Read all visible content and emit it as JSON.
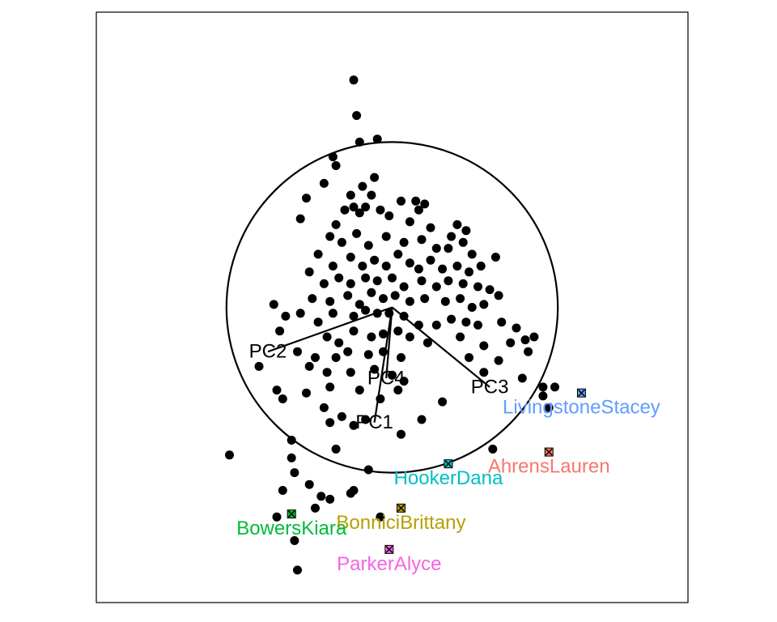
{
  "chart_data": {
    "type": "scatter",
    "title": "",
    "xlabel": "",
    "ylabel": "",
    "xlim": [
      -1.0,
      1.0
    ],
    "ylim": [
      -1.0,
      1.0
    ],
    "grid": false,
    "legend": "none",
    "unit_circle": {
      "center": [
        0,
        0
      ],
      "radius": 0.56
    },
    "axes": [
      {
        "label": "PC1",
        "end": [
          -0.06,
          -0.39
        ]
      },
      {
        "label": "PC2",
        "end": [
          -0.42,
          -0.15
        ]
      },
      {
        "label": "PC3",
        "end": [
          0.33,
          -0.27
        ]
      },
      {
        "label": "PC4",
        "end": [
          -0.02,
          -0.24
        ]
      }
    ],
    "highlighted": [
      {
        "name": "LivingstoneStacey",
        "x": 0.64,
        "y": -0.29,
        "color": "#619cff"
      },
      {
        "name": "AhrensLauren",
        "x": 0.53,
        "y": -0.49,
        "color": "#f8766d"
      },
      {
        "name": "HookerDana",
        "x": 0.19,
        "y": -0.53,
        "color": "#00bfc4"
      },
      {
        "name": "BonniciBrittany",
        "x": 0.03,
        "y": -0.68,
        "color": "#b79f00"
      },
      {
        "name": "BowersKiara",
        "x": -0.34,
        "y": -0.7,
        "color": "#00ba38"
      },
      {
        "name": "ParkerAlyce",
        "x": -0.01,
        "y": -0.82,
        "color": "#f564e3"
      }
    ],
    "points": [
      [
        -0.13,
        0.77
      ],
      [
        -0.12,
        0.65
      ],
      [
        -0.11,
        0.56
      ],
      [
        -0.05,
        0.57
      ],
      [
        -0.2,
        0.51
      ],
      [
        -0.19,
        0.48
      ],
      [
        -0.23,
        0.42
      ],
      [
        -0.06,
        0.44
      ],
      [
        -0.1,
        0.41
      ],
      [
        -0.07,
        0.38
      ],
      [
        -0.14,
        0.38
      ],
      [
        -0.29,
        0.37
      ],
      [
        -0.13,
        0.34
      ],
      [
        -0.09,
        0.34
      ],
      [
        0.03,
        0.36
      ],
      [
        0.08,
        0.36
      ],
      [
        0.11,
        0.35
      ],
      [
        -0.31,
        0.3
      ],
      [
        -0.16,
        0.33
      ],
      [
        -0.19,
        0.28
      ],
      [
        -0.11,
        0.32
      ],
      [
        -0.04,
        0.33
      ],
      [
        -0.01,
        0.31
      ],
      [
        0.09,
        0.33
      ],
      [
        0.06,
        0.29
      ],
      [
        0.13,
        0.27
      ],
      [
        0.22,
        0.28
      ],
      [
        0.25,
        0.26
      ],
      [
        0.2,
        0.24
      ],
      [
        -0.21,
        0.24
      ],
      [
        -0.17,
        0.22
      ],
      [
        -0.12,
        0.25
      ],
      [
        -0.08,
        0.21
      ],
      [
        -0.02,
        0.24
      ],
      [
        0.04,
        0.22
      ],
      [
        0.1,
        0.23
      ],
      [
        0.15,
        0.2
      ],
      [
        0.24,
        0.22
      ],
      [
        0.27,
        0.18
      ],
      [
        0.19,
        0.2
      ],
      [
        -0.25,
        0.18
      ],
      [
        -0.2,
        0.14
      ],
      [
        -0.14,
        0.17
      ],
      [
        -0.1,
        0.14
      ],
      [
        -0.06,
        0.16
      ],
      [
        -0.02,
        0.14
      ],
      [
        0.02,
        0.18
      ],
      [
        0.06,
        0.15
      ],
      [
        0.09,
        0.13
      ],
      [
        0.13,
        0.16
      ],
      [
        0.17,
        0.13
      ],
      [
        0.22,
        0.14
      ],
      [
        0.26,
        0.12
      ],
      [
        0.3,
        0.14
      ],
      [
        0.35,
        0.17
      ],
      [
        -0.28,
        0.12
      ],
      [
        -0.23,
        0.08
      ],
      [
        -0.18,
        0.1
      ],
      [
        -0.14,
        0.08
      ],
      [
        -0.09,
        0.1
      ],
      [
        -0.05,
        0.09
      ],
      [
        0.0,
        0.1
      ],
      [
        0.04,
        0.07
      ],
      [
        0.1,
        0.09
      ],
      [
        0.15,
        0.07
      ],
      [
        0.19,
        0.09
      ],
      [
        0.24,
        0.08
      ],
      [
        0.29,
        0.07
      ],
      [
        0.33,
        0.06
      ],
      [
        -0.27,
        0.03
      ],
      [
        -0.21,
        0.02
      ],
      [
        -0.15,
        0.04
      ],
      [
        -0.11,
        0.01
      ],
      [
        -0.07,
        0.05
      ],
      [
        -0.03,
        0.03
      ],
      [
        0.01,
        0.04
      ],
      [
        0.06,
        0.02
      ],
      [
        0.11,
        0.03
      ],
      [
        0.18,
        0.02
      ],
      [
        0.23,
        0.03
      ],
      [
        0.27,
        0.0
      ],
      [
        0.31,
        0.01
      ],
      [
        0.36,
        0.04
      ],
      [
        -0.4,
        0.01
      ],
      [
        -0.36,
        -0.03
      ],
      [
        -0.31,
        -0.02
      ],
      [
        -0.25,
        -0.05
      ],
      [
        -0.2,
        -0.02
      ],
      [
        -0.13,
        -0.03
      ],
      [
        -0.09,
        -0.01
      ],
      [
        -0.05,
        -0.02
      ],
      [
        -0.01,
        -0.02
      ],
      [
        0.04,
        -0.03
      ],
      [
        0.09,
        -0.06
      ],
      [
        0.15,
        -0.06
      ],
      [
        0.2,
        -0.04
      ],
      [
        0.25,
        -0.05
      ],
      [
        0.29,
        -0.06
      ],
      [
        0.37,
        -0.05
      ],
      [
        0.42,
        -0.07
      ],
      [
        0.45,
        -0.11
      ],
      [
        0.48,
        -0.1
      ],
      [
        -0.38,
        -0.08
      ],
      [
        -0.22,
        -0.1
      ],
      [
        -0.18,
        -0.12
      ],
      [
        -0.13,
        -0.08
      ],
      [
        -0.07,
        -0.1
      ],
      [
        -0.03,
        -0.09
      ],
      [
        0.02,
        -0.08
      ],
      [
        0.06,
        -0.1
      ],
      [
        0.12,
        -0.12
      ],
      [
        0.23,
        -0.1
      ],
      [
        0.31,
        -0.13
      ],
      [
        0.4,
        -0.12
      ],
      [
        0.46,
        -0.15
      ],
      [
        -0.32,
        -0.15
      ],
      [
        -0.26,
        -0.17
      ],
      [
        -0.19,
        -0.17
      ],
      [
        -0.15,
        -0.15
      ],
      [
        -0.08,
        -0.16
      ],
      [
        -0.03,
        -0.15
      ],
      [
        0.03,
        -0.17
      ],
      [
        0.26,
        -0.17
      ],
      [
        0.36,
        -0.18
      ],
      [
        -0.45,
        -0.2
      ],
      [
        -0.28,
        -0.2
      ],
      [
        -0.22,
        -0.22
      ],
      [
        -0.14,
        -0.22
      ],
      [
        -0.06,
        -0.21
      ],
      [
        0.0,
        -0.23
      ],
      [
        0.04,
        -0.25
      ],
      [
        0.31,
        -0.22
      ],
      [
        0.44,
        -0.24
      ],
      [
        0.51,
        -0.27
      ],
      [
        0.55,
        -0.27
      ],
      [
        -0.39,
        -0.28
      ],
      [
        -0.29,
        -0.29
      ],
      [
        -0.21,
        -0.27
      ],
      [
        -0.11,
        -0.28
      ],
      [
        -0.04,
        -0.31
      ],
      [
        0.02,
        -0.28
      ],
      [
        0.17,
        -0.32
      ],
      [
        -0.37,
        -0.31
      ],
      [
        -0.23,
        -0.34
      ],
      [
        -0.17,
        -0.37
      ],
      [
        -0.09,
        -0.38
      ],
      [
        -0.13,
        -0.4
      ],
      [
        -0.21,
        -0.39
      ],
      [
        0.1,
        -0.38
      ],
      [
        0.51,
        -0.3
      ],
      [
        0.53,
        -0.34
      ],
      [
        -0.34,
        -0.45
      ],
      [
        -0.19,
        -0.48
      ],
      [
        0.34,
        -0.48
      ],
      [
        -0.08,
        -0.55
      ],
      [
        -0.33,
        -0.56
      ],
      [
        -0.28,
        -0.6
      ],
      [
        -0.14,
        -0.63
      ],
      [
        -0.13,
        -0.62
      ],
      [
        -0.24,
        -0.64
      ],
      [
        -0.26,
        -0.68
      ],
      [
        -0.37,
        -0.62
      ],
      [
        -0.39,
        -0.71
      ],
      [
        -0.33,
        -0.79
      ],
      [
        -0.32,
        -0.89
      ],
      [
        -0.04,
        -0.71
      ],
      [
        -0.21,
        -0.65
      ],
      [
        -0.55,
        -0.5
      ],
      [
        -0.34,
        -0.51
      ],
      [
        0.03,
        -0.43
      ]
    ]
  }
}
